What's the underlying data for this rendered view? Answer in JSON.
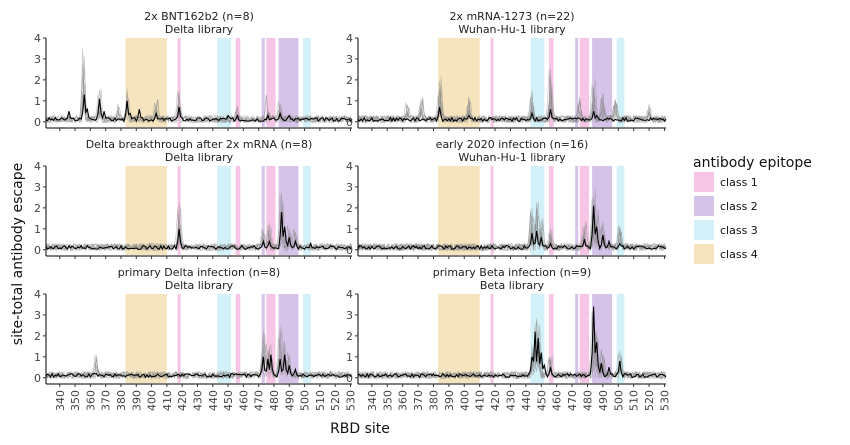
{
  "chart_data": {
    "type": "line",
    "xlabel": "RBD site",
    "ylabel": "site-total antibody escape",
    "xlim": [
      331,
      531
    ],
    "ylim": [
      -0.25,
      4
    ],
    "yticks": [
      0,
      1,
      2,
      3,
      4
    ],
    "xticks": [
      340,
      350,
      360,
      370,
      380,
      390,
      400,
      410,
      420,
      430,
      440,
      450,
      460,
      470,
      480,
      490,
      500,
      510,
      520,
      530
    ],
    "grid": false,
    "legend": {
      "title": "antibody epitope",
      "placement": "right",
      "items": [
        {
          "label": "class 1",
          "color": "#f7c6e6"
        },
        {
          "label": "class 2",
          "color": "#d6c3ea"
        },
        {
          "label": "class 3",
          "color": "#d2f1f8"
        },
        {
          "label": "class 4",
          "color": "#f5e4bd"
        }
      ]
    },
    "epitope_regions": [
      {
        "class": "class 4",
        "start": 383,
        "end": 410
      },
      {
        "class": "class 1",
        "start": 417,
        "end": 419
      },
      {
        "class": "class 3",
        "start": 443,
        "end": 452
      },
      {
        "class": "class 1",
        "start": 455,
        "end": 458
      },
      {
        "class": "class 2",
        "start": 472,
        "end": 474
      },
      {
        "class": "class 1",
        "start": 475,
        "end": 481
      },
      {
        "class": "class 2",
        "start": 483,
        "end": 496
      },
      {
        "class": "class 3",
        "start": 499,
        "end": 504
      }
    ],
    "panels": [
      {
        "title": "2x BNT162b2 (n=8)",
        "subtitle": "Delta library",
        "n_samples": 8,
        "mean_peaks": [
          [
            346,
            0.5
          ],
          [
            356,
            1.3
          ],
          [
            358,
            0.6
          ],
          [
            366,
            1.1
          ],
          [
            369,
            0.5
          ],
          [
            384,
            1.0
          ],
          [
            386,
            0.4
          ],
          [
            392,
            0.6
          ],
          [
            403,
            0.4
          ],
          [
            418,
            0.7
          ],
          [
            450,
            0.3
          ],
          [
            456,
            0.3
          ],
          [
            476,
            0.3
          ],
          [
            484,
            0.4
          ],
          [
            490,
            0.3
          ]
        ],
        "sample_peaks": [
          [
            356,
            3.8
          ],
          [
            366,
            1.8
          ],
          [
            384,
            1.6
          ],
          [
            418,
            1.6
          ],
          [
            378,
            0.9
          ],
          [
            403,
            1.1
          ],
          [
            456,
            0.8
          ],
          [
            476,
            1.3
          ],
          [
            484,
            1.0
          ]
        ]
      },
      {
        "title": "2x mRNA-1273 (n=22)",
        "subtitle": "Wuhan-Hu-1 library",
        "n_samples": 22,
        "mean_peaks": [
          [
            384,
            0.7
          ],
          [
            403,
            0.3
          ],
          [
            417,
            0.2
          ],
          [
            444,
            0.4
          ],
          [
            456,
            0.6
          ],
          [
            484,
            0.5
          ],
          [
            486,
            0.3
          ]
        ],
        "sample_peaks": [
          [
            384,
            2.2
          ],
          [
            403,
            1.3
          ],
          [
            444,
            1.6
          ],
          [
            456,
            2.6
          ],
          [
            484,
            2.1
          ],
          [
            490,
            1.5
          ],
          [
            475,
            1.2
          ],
          [
            498,
            1.3
          ],
          [
            520,
            0.9
          ],
          [
            372,
            1.2
          ],
          [
            363,
            1.0
          ]
        ]
      },
      {
        "title": "Delta breakthrough after 2x mRNA (n=8)",
        "subtitle": "Delta library",
        "n_samples": 8,
        "mean_peaks": [
          [
            418,
            1.0
          ],
          [
            473,
            0.4
          ],
          [
            477,
            0.4
          ],
          [
            485,
            1.8
          ],
          [
            487,
            1.1
          ],
          [
            490,
            0.6
          ],
          [
            494,
            0.4
          ],
          [
            504,
            0.3
          ]
        ],
        "sample_peaks": [
          [
            418,
            2.4
          ],
          [
            485,
            2.8
          ],
          [
            477,
            1.4
          ],
          [
            490,
            1.2
          ],
          [
            473,
            1.0
          ],
          [
            494,
            1.0
          ]
        ]
      },
      {
        "title": "early 2020 infection (n=16)",
        "subtitle": "Wuhan-Hu-1 library",
        "n_samples": 16,
        "mean_peaks": [
          [
            444,
            0.8
          ],
          [
            447,
            0.9
          ],
          [
            450,
            0.6
          ],
          [
            456,
            0.3
          ],
          [
            478,
            0.5
          ],
          [
            484,
            2.1
          ],
          [
            486,
            1.1
          ],
          [
            490,
            0.7
          ],
          [
            494,
            0.4
          ],
          [
            501,
            0.3
          ]
        ],
        "sample_peaks": [
          [
            444,
            2.2
          ],
          [
            447,
            2.3
          ],
          [
            450,
            1.6
          ],
          [
            484,
            3.0
          ],
          [
            486,
            2.0
          ],
          [
            478,
            1.5
          ],
          [
            490,
            1.5
          ],
          [
            501,
            1.3
          ],
          [
            456,
            1.1
          ]
        ]
      },
      {
        "title": "primary Delta infection (n=8)",
        "subtitle": "Delta library",
        "n_samples": 8,
        "mean_peaks": [
          [
            473,
            1.0
          ],
          [
            476,
            0.9
          ],
          [
            478,
            1.1
          ],
          [
            484,
            0.9
          ],
          [
            487,
            1.1
          ],
          [
            490,
            0.6
          ],
          [
            494,
            0.4
          ],
          [
            364,
            0.2
          ]
        ],
        "sample_peaks": [
          [
            473,
            2.3
          ],
          [
            476,
            1.8
          ],
          [
            484,
            2.5
          ],
          [
            487,
            2.0
          ],
          [
            490,
            1.3
          ],
          [
            364,
            1.1
          ],
          [
            478,
            1.6
          ]
        ]
      },
      {
        "title": "primary Beta infection (n=9)",
        "subtitle": "Beta library",
        "n_samples": 9,
        "mean_peaks": [
          [
            444,
            1.0
          ],
          [
            446,
            2.2
          ],
          [
            448,
            1.9
          ],
          [
            450,
            1.2
          ],
          [
            452,
            0.6
          ],
          [
            456,
            0.5
          ],
          [
            484,
            3.4
          ],
          [
            486,
            1.7
          ],
          [
            489,
            0.7
          ],
          [
            494,
            0.5
          ],
          [
            501,
            0.8
          ]
        ],
        "sample_peaks": [
          [
            446,
            2.9
          ],
          [
            448,
            2.7
          ],
          [
            444,
            1.6
          ],
          [
            484,
            3.6
          ],
          [
            486,
            2.3
          ],
          [
            490,
            1.5
          ],
          [
            501,
            1.4
          ],
          [
            456,
            1.1
          ]
        ]
      }
    ]
  }
}
